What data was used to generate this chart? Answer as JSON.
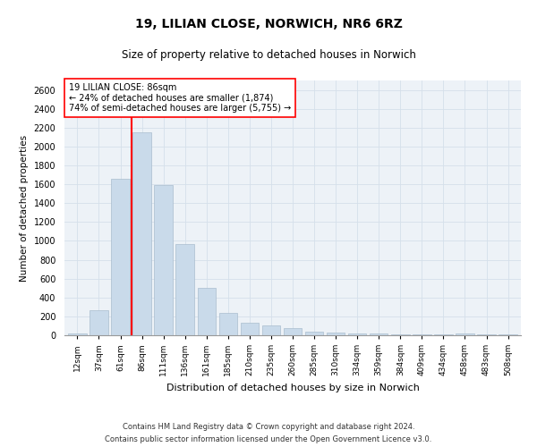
{
  "title1": "19, LILIAN CLOSE, NORWICH, NR6 6RZ",
  "title2": "Size of property relative to detached houses in Norwich",
  "xlabel": "Distribution of detached houses by size in Norwich",
  "ylabel": "Number of detached properties",
  "property_label": "19 LILIAN CLOSE: 86sqm",
  "annotation_line1": "← 24% of detached houses are smaller (1,874)",
  "annotation_line2": "74% of semi-detached houses are larger (5,755) →",
  "footnote1": "Contains HM Land Registry data © Crown copyright and database right 2024.",
  "footnote2": "Contains public sector information licensed under the Open Government Licence v3.0.",
  "bar_color": "#c9daea",
  "bar_edge_color": "#aabdce",
  "vline_color": "red",
  "grid_color": "#d5e0ea",
  "background_color": "#edf2f7",
  "categories": [
    "12sqm",
    "37sqm",
    "61sqm",
    "86sqm",
    "111sqm",
    "136sqm",
    "161sqm",
    "185sqm",
    "210sqm",
    "235sqm",
    "260sqm",
    "285sqm",
    "310sqm",
    "334sqm",
    "359sqm",
    "384sqm",
    "409sqm",
    "434sqm",
    "458sqm",
    "483sqm",
    "508sqm"
  ],
  "values": [
    18,
    265,
    1660,
    2150,
    1590,
    970,
    500,
    240,
    130,
    100,
    80,
    38,
    28,
    20,
    18,
    14,
    8,
    5,
    18,
    5,
    14
  ],
  "ylim": [
    0,
    2700
  ],
  "yticks": [
    0,
    200,
    400,
    600,
    800,
    1000,
    1200,
    1400,
    1600,
    1800,
    2000,
    2200,
    2400,
    2600
  ],
  "property_bar_idx": 3
}
